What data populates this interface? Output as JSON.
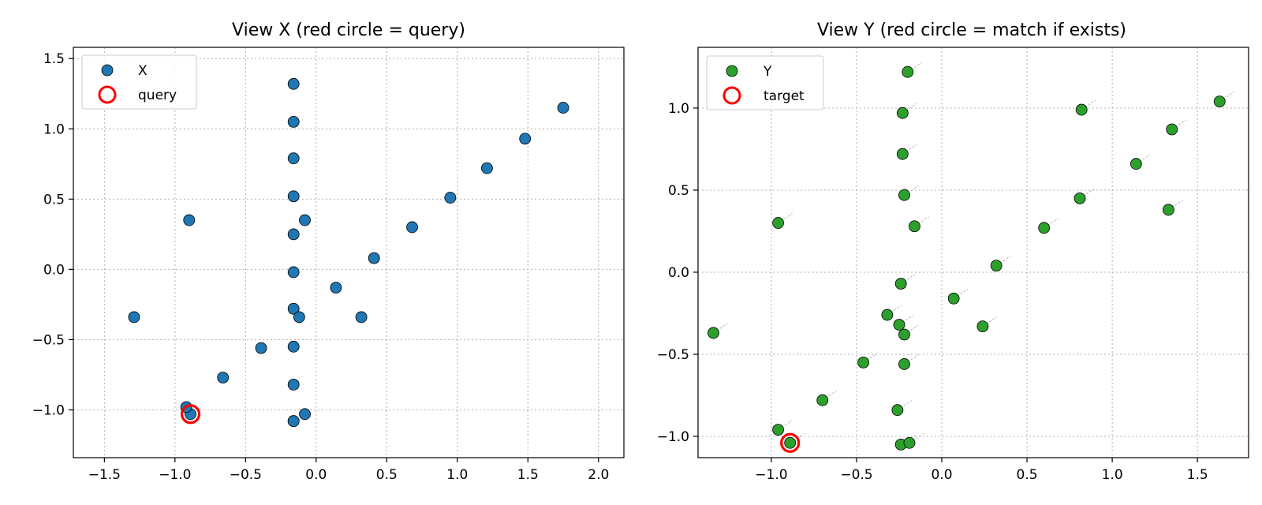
{
  "chart_data": [
    {
      "type": "scatter",
      "title": "View X (red circle = query)",
      "xlim": [
        -1.72,
        2.18
      ],
      "ylim": [
        -1.34,
        1.58
      ],
      "xticks": [
        -1.5,
        -1.0,
        -0.5,
        0.0,
        0.5,
        1.0,
        1.5,
        2.0
      ],
      "yticks": [
        -1.0,
        -0.5,
        0.0,
        0.5,
        1.0,
        1.5
      ],
      "grid": true,
      "legend": {
        "placement": "top-left",
        "entries": [
          "X",
          "query"
        ]
      },
      "colors": {
        "points": "#1f77b4",
        "highlight": "#ff0000"
      },
      "series": [
        {
          "name": "X",
          "x": [
            -0.16,
            -0.16,
            -0.16,
            -0.16,
            -0.16,
            -0.16,
            -0.16,
            -0.16,
            -0.16,
            -0.16,
            -0.16,
            -0.08,
            -0.08,
            -0.12,
            -0.9,
            -1.29,
            -0.89,
            -0.92,
            -0.66,
            -0.39,
            0.14,
            0.32,
            0.41,
            0.68,
            0.95,
            1.21,
            1.48,
            1.75
          ],
          "y": [
            1.32,
            1.05,
            0.79,
            0.52,
            0.25,
            -0.02,
            -0.28,
            -0.55,
            -0.82,
            -1.08,
            -1.08,
            0.35,
            -1.03,
            -0.34,
            0.35,
            -0.34,
            -1.03,
            -0.98,
            -0.77,
            -0.56,
            -0.13,
            -0.34,
            0.08,
            0.3,
            0.51,
            0.72,
            0.93,
            1.15
          ]
        }
      ],
      "highlight": {
        "name": "query",
        "x": -0.89,
        "y": -1.03
      }
    },
    {
      "type": "scatter",
      "title": "View Y (red circle = match if exists)",
      "xlim": [
        -1.43,
        1.8
      ],
      "ylim": [
        -1.13,
        1.37
      ],
      "xticks": [
        -1.0,
        -0.5,
        0.0,
        0.5,
        1.0,
        1.5
      ],
      "yticks": [
        -1.0,
        -0.5,
        0.0,
        0.5,
        1.0
      ],
      "grid": true,
      "legend": {
        "placement": "top-left",
        "entries": [
          "Y",
          "target"
        ]
      },
      "colors": {
        "points": "#2ca02c",
        "highlight": "#ff0000"
      },
      "series": [
        {
          "name": "Y",
          "x": [
            -0.2,
            -0.23,
            -0.23,
            -0.22,
            -0.16,
            -0.24,
            -0.32,
            -0.25,
            -0.22,
            -0.22,
            -0.26,
            -0.24,
            -0.19,
            -0.96,
            -1.34,
            -0.89,
            -0.96,
            -0.7,
            -0.46,
            0.07,
            0.24,
            0.32,
            0.6,
            0.81,
            0.82,
            1.14,
            1.35,
            1.33,
            1.63
          ],
          "y": [
            1.22,
            0.97,
            0.72,
            0.47,
            0.28,
            -0.07,
            -0.26,
            -0.32,
            -0.38,
            -0.56,
            -0.84,
            -1.05,
            -1.04,
            0.3,
            -0.37,
            -1.04,
            -0.96,
            -0.78,
            -0.55,
            -0.16,
            -0.33,
            0.04,
            0.27,
            0.45,
            0.99,
            0.66,
            0.87,
            0.38,
            1.04
          ]
        }
      ],
      "highlight": {
        "name": "target",
        "x": -0.89,
        "y": -1.04
      }
    }
  ]
}
